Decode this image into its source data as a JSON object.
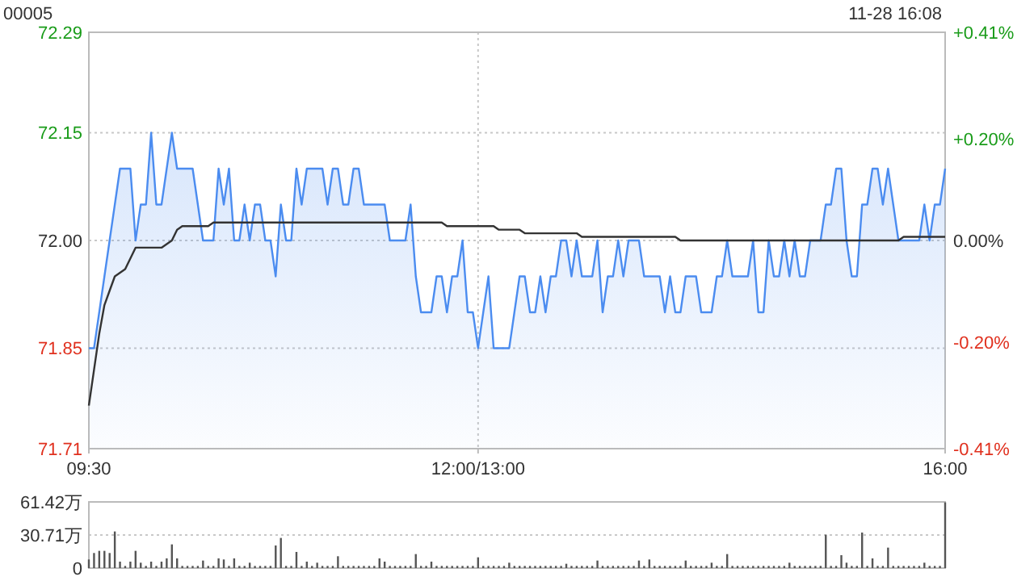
{
  "chart_data": [
    {
      "type": "line",
      "title": "00005",
      "subtitle": "11-28 16:08",
      "categories": [
        "09:30",
        null,
        null,
        null,
        null,
        null,
        null,
        null,
        null,
        null,
        null,
        null,
        null,
        null,
        null,
        null,
        null,
        null,
        null,
        null,
        null,
        null,
        null,
        null,
        null,
        null,
        null,
        null,
        null,
        null,
        null,
        null,
        null,
        null,
        null,
        null,
        null,
        null,
        null,
        null,
        null,
        null,
        null,
        null,
        null,
        null,
        null,
        null,
        null,
        null,
        null,
        null,
        null,
        null,
        null,
        null,
        null,
        null,
        null,
        null,
        null,
        null,
        null,
        null,
        null,
        null,
        null,
        null,
        null,
        null,
        null,
        null,
        null,
        null,
        null,
        "12:00/13:00",
        null,
        null,
        null,
        null,
        null,
        null,
        null,
        null,
        null,
        null,
        null,
        null,
        null,
        null,
        null,
        null,
        null,
        null,
        null,
        null,
        null,
        null,
        null,
        null,
        null,
        null,
        null,
        null,
        null,
        null,
        null,
        null,
        null,
        null,
        null,
        null,
        null,
        null,
        null,
        null,
        null,
        null,
        null,
        null,
        null,
        null,
        null,
        null,
        null,
        null,
        null,
        null,
        null,
        null,
        null,
        null,
        null,
        null,
        null,
        null,
        null,
        null,
        null,
        null,
        null,
        null,
        null,
        null,
        null,
        null,
        null,
        null,
        null,
        null,
        null,
        null,
        null,
        null,
        null,
        null,
        null,
        null,
        null,
        null,
        null,
        null,
        null,
        null,
        null,
        "16:00"
      ],
      "ylim": [
        71.71,
        72.29
      ],
      "yticks": [
        71.71,
        71.85,
        {
          "value": 72,
          "label": "72.00"
        },
        72.15,
        72.29
      ],
      "y2lim": [
        -0.41,
        0.41
      ],
      "y2ticks": [
        {
          "value": -0.41,
          "label": "-0.41%"
        },
        {
          "value": -0.2,
          "label": "-0.20%"
        },
        {
          "value": 0,
          "label": "0.00%"
        },
        {
          "value": 0.2,
          "label": "+0.20%"
        },
        {
          "value": 0.41,
          "label": "+0.41%"
        }
      ],
      "grid": true,
      "series": [
        {
          "type": "area",
          "color": "#4b8cf0",
          "values": [
            71.85,
            71.85,
            71.9,
            71.95,
            72.0,
            72.05,
            72.1,
            72.1,
            72.1,
            72.0,
            72.05,
            72.05,
            72.15,
            72.05,
            72.05,
            72.1,
            72.15,
            72.1,
            72.1,
            72.1,
            72.1,
            72.05,
            72.0,
            72.0,
            72.0,
            72.1,
            72.05,
            72.1,
            72.0,
            72.0,
            72.05,
            72.0,
            72.05,
            72.05,
            72.0,
            72.0,
            71.95,
            72.05,
            72.0,
            72.0,
            72.1,
            72.05,
            72.1,
            72.1,
            72.1,
            72.1,
            72.05,
            72.1,
            72.1,
            72.05,
            72.05,
            72.1,
            72.1,
            72.05,
            72.05,
            72.05,
            72.05,
            72.05,
            72.0,
            72.0,
            72.0,
            72.0,
            72.05,
            71.95,
            71.9,
            71.9,
            71.9,
            71.95,
            71.95,
            71.9,
            71.95,
            71.95,
            72.0,
            71.9,
            71.9,
            71.85,
            71.9,
            71.95,
            71.85,
            71.85,
            71.85,
            71.85,
            71.9,
            71.95,
            71.95,
            71.9,
            71.9,
            71.95,
            71.9,
            71.95,
            71.95,
            72.0,
            72.0,
            71.95,
            72.0,
            71.95,
            71.95,
            71.95,
            72.0,
            71.9,
            71.95,
            71.95,
            72.0,
            71.95,
            72.0,
            72.0,
            72.0,
            71.95,
            71.95,
            71.95,
            71.95,
            71.9,
            71.95,
            71.9,
            71.9,
            71.95,
            71.95,
            71.95,
            71.9,
            71.9,
            71.9,
            71.95,
            71.95,
            72.0,
            71.95,
            71.95,
            71.95,
            71.95,
            72.0,
            71.9,
            71.9,
            72.0,
            71.95,
            71.95,
            72.0,
            71.95,
            72.0,
            71.95,
            71.95,
            72.0,
            72.0,
            72.0,
            72.05,
            72.05,
            72.1,
            72.1,
            72.0,
            71.95,
            71.95,
            72.05,
            72.05,
            72.1,
            72.1,
            72.05,
            72.1,
            72.05,
            72.0,
            72.0,
            72.0,
            72.0,
            72.0,
            72.05,
            72.0,
            72.05,
            72.05,
            72.1
          ]
        },
        {
          "type": "line",
          "color": "#333333",
          "values": [
            71.77,
            71.82,
            71.87,
            71.91,
            71.93,
            71.95,
            71.955,
            71.96,
            71.975,
            71.99,
            71.99,
            71.99,
            71.99,
            71.99,
            71.99,
            71.995,
            72.0,
            72.015,
            72.02,
            72.02,
            72.02,
            72.02,
            72.02,
            72.02,
            72.025,
            72.025,
            72.025,
            72.025,
            72.025,
            72.025,
            72.025,
            72.025,
            72.025,
            72.025,
            72.025,
            72.025,
            72.025,
            72.025,
            72.025,
            72.025,
            72.025,
            72.025,
            72.025,
            72.025,
            72.025,
            72.025,
            72.025,
            72.025,
            72.025,
            72.025,
            72.025,
            72.025,
            72.025,
            72.025,
            72.025,
            72.025,
            72.025,
            72.025,
            72.025,
            72.025,
            72.025,
            72.025,
            72.025,
            72.025,
            72.025,
            72.025,
            72.025,
            72.025,
            72.025,
            72.02,
            72.02,
            72.02,
            72.02,
            72.02,
            72.02,
            72.02,
            72.02,
            72.02,
            72.02,
            72.015,
            72.015,
            72.015,
            72.015,
            72.015,
            72.01,
            72.01,
            72.01,
            72.01,
            72.01,
            72.01,
            72.01,
            72.01,
            72.01,
            72.01,
            72.01,
            72.005,
            72.005,
            72.005,
            72.005,
            72.005,
            72.005,
            72.005,
            72.005,
            72.005,
            72.005,
            72.005,
            72.005,
            72.005,
            72.005,
            72.005,
            72.005,
            72.005,
            72.005,
            72.005,
            72.0,
            72.0,
            72.0,
            72.0,
            72.0,
            72.0,
            72.0,
            72.0,
            72.0,
            72.0,
            72.0,
            72.0,
            72.0,
            72.0,
            72.0,
            72.0,
            72.0,
            72.0,
            72.0,
            72.0,
            72.0,
            72.0,
            72.0,
            72.0,
            72.0,
            72.0,
            72.0,
            72.0,
            72.0,
            72.0,
            72.0,
            72.0,
            72.0,
            72.0,
            72.0,
            72.0,
            72.0,
            72.0,
            72.0,
            72.0,
            72.0,
            72.0,
            72.0,
            72.005,
            72.005,
            72.005,
            72.005,
            72.005,
            72.005,
            72.005,
            72.005,
            72.005
          ]
        }
      ]
    },
    {
      "type": "bar",
      "categories": [
        null,
        null,
        null,
        null,
        null,
        null,
        null,
        null,
        null,
        null,
        null,
        null,
        null,
        null,
        null,
        null,
        null,
        null,
        null,
        null,
        null,
        null,
        null,
        null,
        null,
        null,
        null,
        null,
        null,
        null,
        null,
        null,
        null,
        null,
        null,
        null,
        null,
        null,
        null,
        null,
        null,
        null,
        null,
        null,
        null,
        null,
        null,
        null,
        null,
        null,
        null,
        null,
        null,
        null,
        null,
        null,
        null,
        null,
        null,
        null,
        null,
        null,
        null,
        null,
        null,
        null,
        null,
        null,
        null,
        null,
        null,
        null,
        null,
        null,
        null,
        null,
        null,
        null,
        null,
        null,
        null,
        null,
        null,
        null,
        null,
        null,
        null,
        null,
        null,
        null,
        null,
        null,
        null,
        null,
        null,
        null,
        null,
        null,
        null,
        null,
        null,
        null,
        null,
        null,
        null,
        null,
        null,
        null,
        null,
        null,
        null,
        null,
        null,
        null,
        null,
        null,
        null,
        null,
        null,
        null,
        null,
        null,
        null,
        null,
        null,
        null,
        null,
        null,
        null,
        null,
        null,
        null,
        null,
        null,
        null,
        null,
        null,
        null,
        null,
        null,
        null,
        null,
        null,
        null,
        null,
        null,
        null,
        null,
        null,
        null,
        null,
        null,
        null,
        null,
        null,
        null,
        null,
        null,
        null,
        null,
        null,
        null,
        null,
        null,
        null,
        null
      ],
      "ylim": [
        0,
        61.42
      ],
      "yticks": [
        0,
        {
          "value": 30.71,
          "label": "30.71万"
        },
        {
          "value": 61.42,
          "label": "61.42万"
        }
      ],
      "grid": "y",
      "tick_labels": "y",
      "series": [
        {
          "color": "#555555",
          "values": [
            8,
            14,
            16,
            16,
            14,
            34,
            6,
            2,
            6,
            16,
            5,
            2,
            6,
            2,
            6,
            9,
            22,
            9,
            2,
            2,
            2,
            2,
            7,
            2,
            2,
            9,
            8,
            2,
            9,
            2,
            2,
            5,
            2,
            2,
            2,
            2,
            21,
            28,
            2,
            2,
            15,
            2,
            6,
            2,
            5,
            2,
            2,
            2,
            11,
            2,
            2,
            2,
            2,
            2,
            2,
            2,
            9,
            6,
            2,
            2,
            2,
            2,
            2,
            13,
            2,
            2,
            6,
            2,
            2,
            2,
            2,
            2,
            2,
            2,
            2,
            10,
            2,
            2,
            2,
            2,
            2,
            5,
            2,
            2,
            2,
            2,
            2,
            2,
            2,
            2,
            2,
            2,
            4,
            2,
            2,
            2,
            2,
            2,
            7,
            2,
            2,
            2,
            2,
            2,
            2,
            2,
            7,
            2,
            8,
            2,
            2,
            2,
            2,
            2,
            2,
            7,
            2,
            2,
            2,
            2,
            5,
            2,
            2,
            13,
            2,
            2,
            2,
            2,
            2,
            2,
            2,
            2,
            2,
            2,
            2,
            5,
            2,
            2,
            2,
            2,
            2,
            2,
            31,
            2,
            2,
            12,
            5,
            2,
            2,
            33,
            2,
            9,
            2,
            2,
            19,
            2,
            2,
            2,
            2,
            2,
            2,
            5,
            2,
            2,
            2,
            61
          ]
        }
      ]
    }
  ]
}
